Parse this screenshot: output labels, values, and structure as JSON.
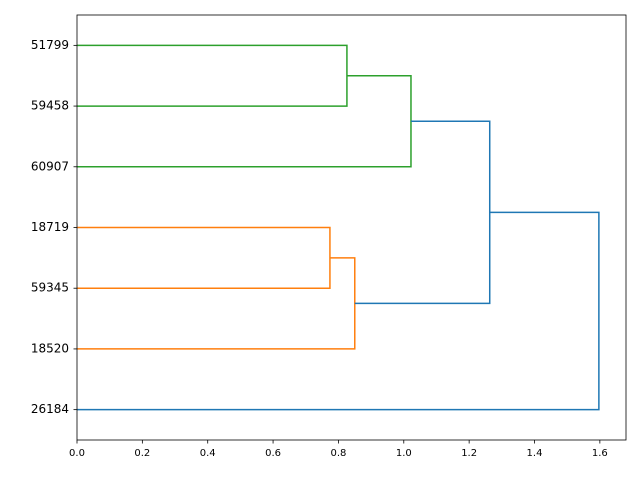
{
  "chart_data": {
    "type": "dendrogram",
    "orientation": "left",
    "xlim": [
      0,
      1.68
    ],
    "xticks": [
      {
        "value": 0,
        "label": "0.0"
      },
      0.2,
      0.4,
      0.6,
      0.8,
      {
        "value": 1,
        "label": "1.0"
      },
      1.2,
      1.4,
      1.6
    ],
    "tree": {
      "distance": 1.597,
      "color": "#1f77b4",
      "children": [
        {
          "distance": 1.263,
          "color": "#1f77b4",
          "children": [
            {
              "distance": 1.022,
              "color": "#2ca02c",
              "children": [
                {
                  "distance": 0.826,
                  "color": "#2ca02c",
                  "children": [
                    "51799",
                    "59458"
                  ]
                },
                "60907"
              ]
            },
            {
              "distance": 0.85,
              "color": "#ff7f0e",
              "children": [
                {
                  "distance": 0.774,
                  "color": "#ff7f0e",
                  "children": [
                    "18719",
                    "59345"
                  ]
                },
                "18520"
              ]
            }
          ]
        },
        "26184"
      ]
    }
  }
}
